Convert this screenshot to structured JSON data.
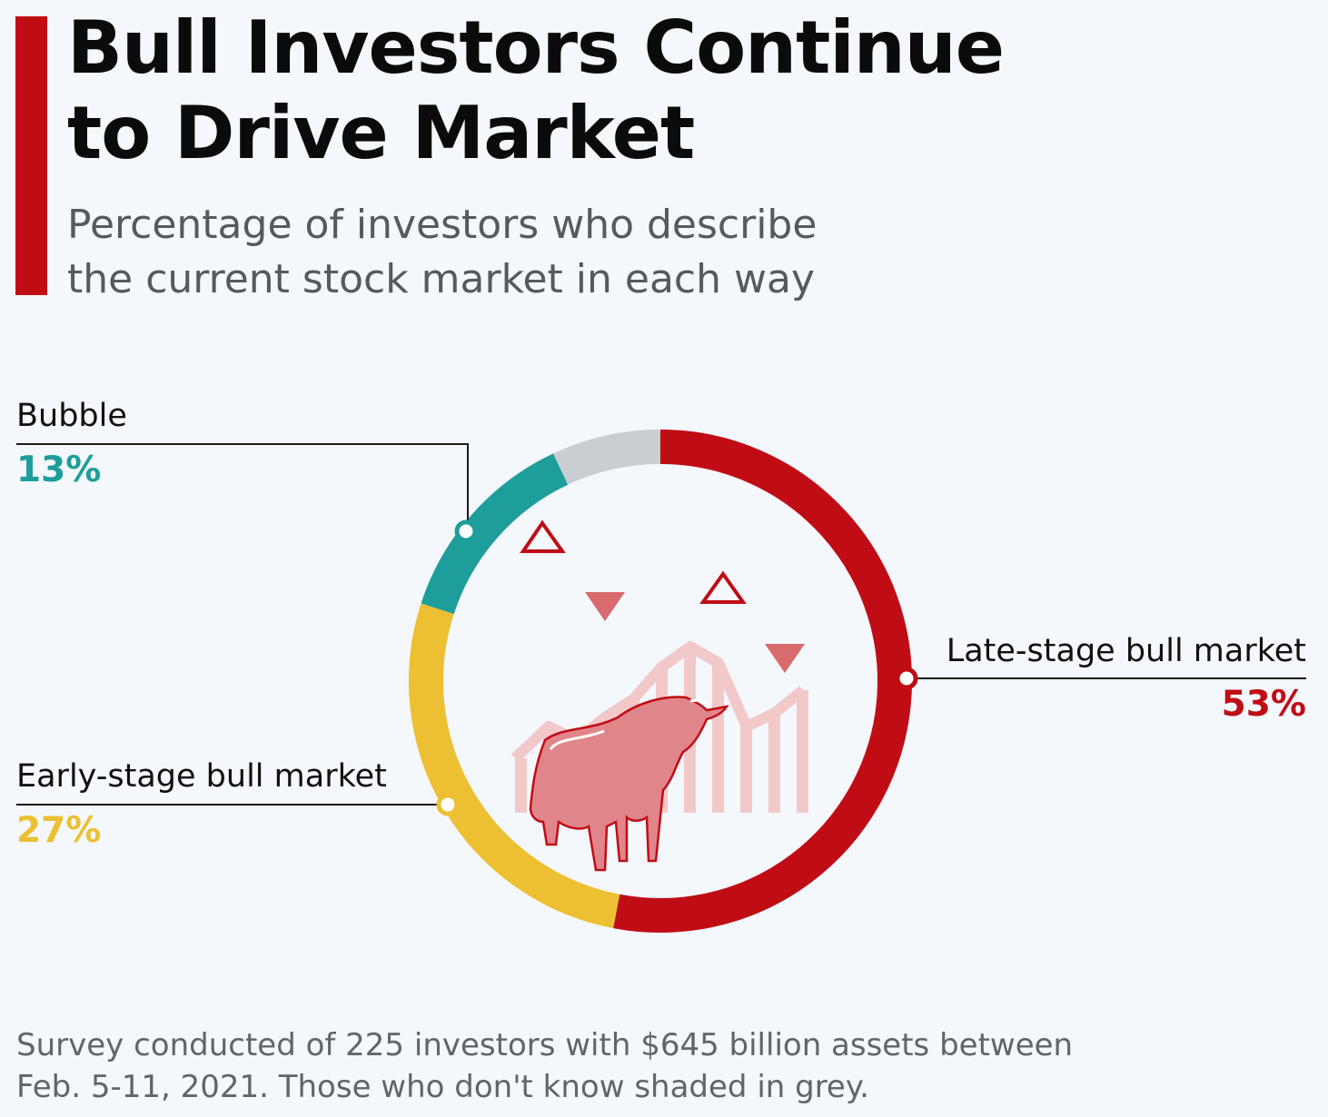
{
  "title": "Bull Investors Continue\nto Drive Market",
  "subtitle": "Percentage of investors who describe\nthe current stock market in each way",
  "footnote": "Survey conducted of 225 investors with $645 billion assets between\nFeb. 5-11, 2021. Those who don't know shaded in grey.",
  "colors": {
    "accent": "#c00d15",
    "late_stage": "#c00d15",
    "early_stage": "#ecc032",
    "bubble": "#1e9e9a",
    "dont_know": "#c9ced3"
  },
  "chart_data": {
    "type": "pie",
    "style": "donut",
    "segments": [
      {
        "name": "Late-stage bull market",
        "value": 53,
        "label": "53%",
        "color": "#c00d15"
      },
      {
        "name": "Early-stage bull market",
        "value": 27,
        "label": "27%",
        "color": "#ecc032"
      },
      {
        "name": "Bubble",
        "value": 13,
        "label": "13%",
        "color": "#1e9e9a"
      },
      {
        "name": "",
        "value": 7,
        "label": "",
        "color": "#c9ced3"
      }
    ],
    "legend": "none"
  },
  "illustration": "bull-icon"
}
